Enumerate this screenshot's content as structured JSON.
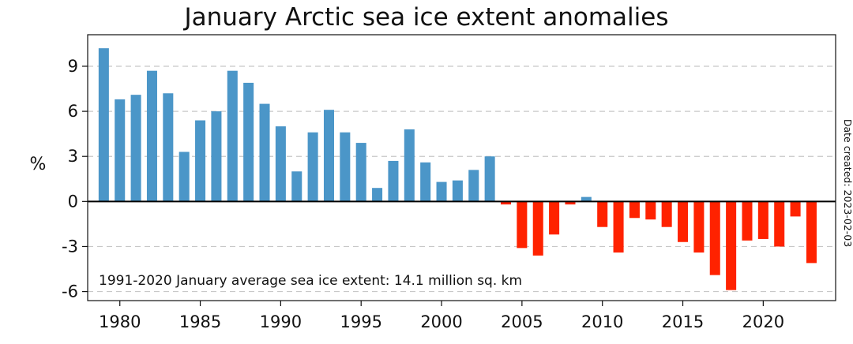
{
  "title": "January Arctic sea ice extent anomalies",
  "chart_data": {
    "type": "bar",
    "title": "January Arctic sea ice extent anomalies",
    "xlabel": "",
    "ylabel": "%",
    "x": [
      1979,
      1980,
      1981,
      1982,
      1983,
      1984,
      1985,
      1986,
      1987,
      1988,
      1989,
      1990,
      1991,
      1992,
      1993,
      1994,
      1995,
      1996,
      1997,
      1998,
      1999,
      2000,
      2001,
      2002,
      2003,
      2004,
      2005,
      2006,
      2007,
      2008,
      2009,
      2010,
      2011,
      2012,
      2013,
      2014,
      2015,
      2016,
      2017,
      2018,
      2019,
      2020,
      2021,
      2022,
      2023
    ],
    "values": [
      10.2,
      6.8,
      7.1,
      8.7,
      7.2,
      3.3,
      5.4,
      6.0,
      8.7,
      7.9,
      6.5,
      5.0,
      2.0,
      4.6,
      6.1,
      4.6,
      3.9,
      0.9,
      2.7,
      4.8,
      2.6,
      1.3,
      1.4,
      2.1,
      3.0,
      -0.2,
      -3.1,
      -3.6,
      -2.2,
      -0.2,
      0.3,
      -1.7,
      -3.4,
      -1.1,
      -1.2,
      -1.7,
      -2.7,
      -3.4,
      -4.9,
      -5.9,
      -2.6,
      -2.5,
      -3.0,
      -1.0,
      -4.1
    ],
    "ylim": [
      -6.6,
      11.1
    ],
    "yticks": [
      -6,
      -3,
      0,
      3,
      6,
      9
    ],
    "xticks": [
      1980,
      1985,
      1990,
      1995,
      2000,
      2005,
      2010,
      2015,
      2020
    ],
    "grid": "horizontal-dashed",
    "colors": {
      "positive": "#4b96c8",
      "negative": "#ff2200",
      "zero_line": "#000000",
      "grid": "#c8c8c8"
    },
    "annotation": "1991-2020 January average sea ice extent: 14.1 million sq. km",
    "side_note": "Date created: 2023-02-03"
  }
}
